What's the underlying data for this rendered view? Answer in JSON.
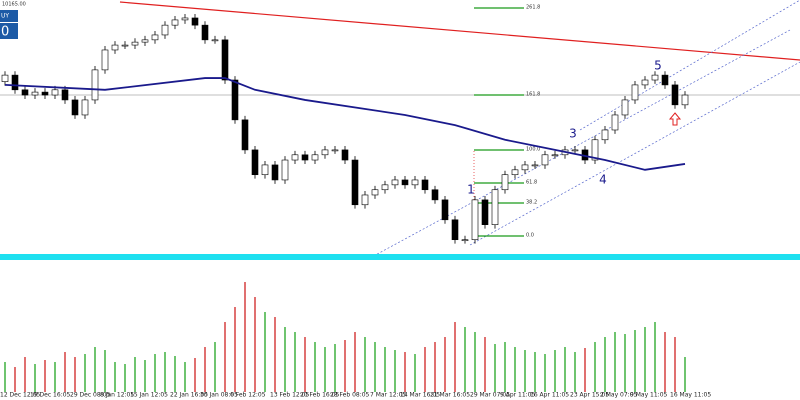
{
  "header": {
    "price": "10165.00",
    "button_label": "UY",
    "button_value": "0"
  },
  "chart_data": {
    "type": "candlestick",
    "categories": [
      "12 Dec 12:05",
      null,
      null,
      "19 Dec 16:05",
      null,
      null,
      null,
      "29 Dec 08:05",
      null,
      null,
      "8 Jan 12:05",
      null,
      null,
      "15 Jan 12:05",
      null,
      null,
      null,
      "22 Jan 16:05",
      null,
      null,
      "30 Jan 08:05",
      null,
      null,
      "6 Feb 12:05",
      null,
      null,
      null,
      "13 Feb 12:05",
      null,
      null,
      "20 Feb 16:05",
      null,
      null,
      "28 Feb 08:05",
      null,
      null,
      null,
      "7 Mar 12:05",
      null,
      null,
      "14 Mar 16:05",
      null,
      null,
      "21 Mar 16:05",
      null,
      null,
      null,
      "29 Mar 07:05",
      null,
      null,
      "9 Apr 11:05",
      null,
      null,
      "16 Apr 11:05",
      null,
      null,
      null,
      "23 Apr 15:05",
      null,
      null,
      "2 May 07:05",
      null,
      null,
      "9 May 11:05",
      null,
      null,
      null,
      "16 May 11:05",
      null
    ],
    "open": [
      9930,
      9950,
      9905,
      9889,
      9898,
      9889,
      9905,
      9874,
      9828,
      9874,
      9966,
      10027,
      10042,
      10042,
      10051,
      10058,
      10073,
      10103,
      10119,
      10125,
      10103,
      10058,
      10058,
      9935,
      9813,
      9721,
      9645,
      9675,
      9629,
      9690,
      9706,
      9690,
      9706,
      9721,
      9721,
      9690,
      9553,
      9583,
      9599,
      9614,
      9629,
      9614,
      9629,
      9599,
      9568,
      9507,
      9446,
      9446,
      9568,
      9492,
      9599,
      9645,
      9660,
      9675,
      9675,
      9706,
      9706,
      9721,
      9721,
      9690,
      9752,
      9782,
      9828,
      9874,
      9920,
      9935,
      9950,
      9920,
      9859
    ],
    "high": [
      9962,
      9962,
      9917,
      9910,
      9910,
      9917,
      9917,
      9886,
      9886,
      9978,
      10039,
      10054,
      10054,
      10063,
      10070,
      10085,
      10115,
      10131,
      10137,
      10137,
      10115,
      10070,
      10070,
      9947,
      9825,
      9733,
      9687,
      9687,
      9702,
      9718,
      9718,
      9718,
      9733,
      9733,
      9733,
      9702,
      9595,
      9611,
      9626,
      9641,
      9641,
      9641,
      9641,
      9611,
      9580,
      9519,
      9458,
      9580,
      9580,
      9611,
      9657,
      9672,
      9687,
      9687,
      9718,
      9718,
      9733,
      9733,
      9733,
      9764,
      9794,
      9840,
      9886,
      9932,
      9947,
      9962,
      9962,
      9932,
      9901
    ],
    "low": [
      9918,
      9893,
      9877,
      9877,
      9877,
      9877,
      9862,
      9816,
      9816,
      9862,
      9954,
      10015,
      10030,
      10030,
      10039,
      10046,
      10061,
      10091,
      10107,
      10091,
      10046,
      10046,
      9923,
      9801,
      9709,
      9633,
      9633,
      9617,
      9617,
      9678,
      9678,
      9678,
      9694,
      9709,
      9678,
      9541,
      9541,
      9571,
      9587,
      9602,
      9602,
      9602,
      9587,
      9556,
      9495,
      9434,
      9434,
      9434,
      9480,
      9480,
      9587,
      9633,
      9648,
      9663,
      9663,
      9694,
      9694,
      9709,
      9678,
      9678,
      9740,
      9770,
      9816,
      9862,
      9908,
      9923,
      9908,
      9847,
      9847
    ],
    "close": [
      9950,
      9905,
      9889,
      9898,
      9889,
      9905,
      9874,
      9828,
      9874,
      9966,
      10027,
      10042,
      10042,
      10051,
      10058,
      10073,
      10103,
      10119,
      10125,
      10103,
      10058,
      10058,
      9935,
      9813,
      9721,
      9645,
      9675,
      9629,
      9690,
      9706,
      9690,
      9706,
      9721,
      9721,
      9690,
      9553,
      9583,
      9599,
      9614,
      9629,
      9614,
      9629,
      9599,
      9568,
      9507,
      9446,
      9446,
      9568,
      9492,
      9599,
      9645,
      9660,
      9675,
      9675,
      9706,
      9706,
      9721,
      9721,
      9690,
      9752,
      9782,
      9828,
      9874,
      9920,
      9935,
      9950,
      9920,
      9859,
      9889
    ],
    "volume": [
      30,
      25,
      35,
      28,
      32,
      30,
      40,
      35,
      38,
      45,
      42,
      30,
      28,
      35,
      32,
      38,
      40,
      36,
      30,
      34,
      45,
      50,
      70,
      85,
      110,
      95,
      80,
      75,
      65,
      60,
      55,
      50,
      45,
      48,
      52,
      60,
      55,
      50,
      45,
      42,
      40,
      38,
      45,
      50,
      55,
      70,
      65,
      60,
      55,
      48,
      50,
      45,
      42,
      40,
      38,
      42,
      45,
      40,
      44,
      50,
      55,
      60,
      58,
      62,
      65,
      70,
      60,
      55,
      35
    ],
    "ma": {
      "index": [
        0,
        10,
        20,
        22,
        25,
        30,
        40,
        45,
        50,
        55,
        60,
        64,
        68
      ],
      "values": [
        9920,
        9905,
        9941,
        9941,
        9905,
        9874,
        9828,
        9797,
        9752,
        9721,
        9690,
        9660,
        9678
      ],
      "color": "#1a1a8c"
    },
    "ylim": [
      9390,
      10180
    ],
    "volume_ylim": [
      0,
      130
    ],
    "fib_labels": [
      "261.8",
      "161.8",
      "100.0",
      "61.8",
      "38.2",
      "0.0"
    ],
    "wave_labels": [
      "1",
      "3",
      "4",
      "5"
    ]
  }
}
